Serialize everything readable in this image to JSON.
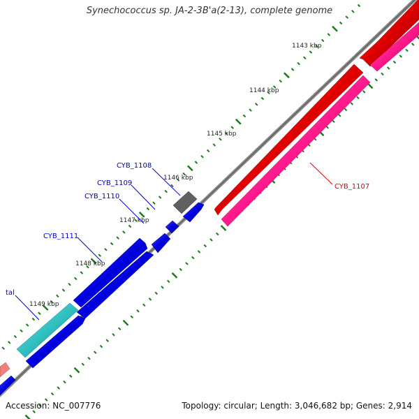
{
  "map": {
    "title": "Synechococcus sp. JA-2-3B'a(2-13), complete genome",
    "accession": "Accession: NC_007776",
    "summary": "Topology: circular; Length: 3,046,682 bp; Genes: 2,914"
  },
  "ticks": [
    "1143 kbp",
    "1144 kbp",
    "1145 kbp",
    "1146 kbp",
    "1147 kbp",
    "1148 kbp",
    "1149 kbp"
  ],
  "genes": [
    {
      "name": "CYB_1107",
      "color": "#e00000"
    },
    {
      "name": "CYB_1108",
      "color": "#606060"
    },
    {
      "name": "CYB_1109",
      "color": "#0000e0"
    },
    {
      "name": "CYB_1110",
      "color": "#0000e0"
    },
    {
      "name": "CYB_1111",
      "color": "#0000e0"
    },
    {
      "name": "tal",
      "color": "#30c0c0"
    }
  ],
  "colors": {
    "forward_red": "#e00000",
    "reverse_pink": "#ff1a8c",
    "cds_blue": "#0000e0",
    "rna_gray": "#606060",
    "tal_cyan": "#30c0c0",
    "tick_green": "#1a7a1a",
    "backbone": "#777777"
  }
}
